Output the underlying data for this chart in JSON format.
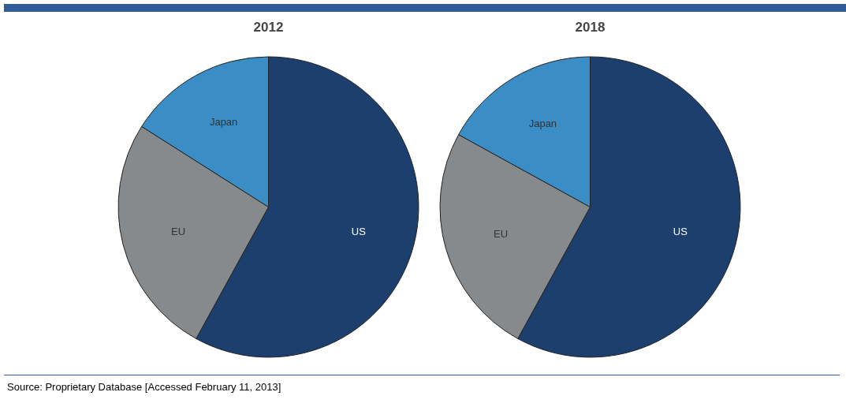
{
  "chart_data": [
    {
      "type": "pie",
      "title": "2012",
      "categories": [
        "US",
        "EU",
        "Japan"
      ],
      "values": [
        58,
        26,
        16
      ],
      "colors": [
        "#1c3f6e",
        "#878a8c",
        "#3a8dc5"
      ]
    },
    {
      "type": "pie",
      "title": "2018",
      "categories": [
        "US",
        "EU",
        "Japan"
      ],
      "values": [
        58,
        25,
        17
      ],
      "colors": [
        "#1c3f6e",
        "#878a8c",
        "#3a8dc5"
      ],
      "annotations": [
        "Source: Proprietary Database [Accessed February 11, 2013]"
      ]
    }
  ]
}
